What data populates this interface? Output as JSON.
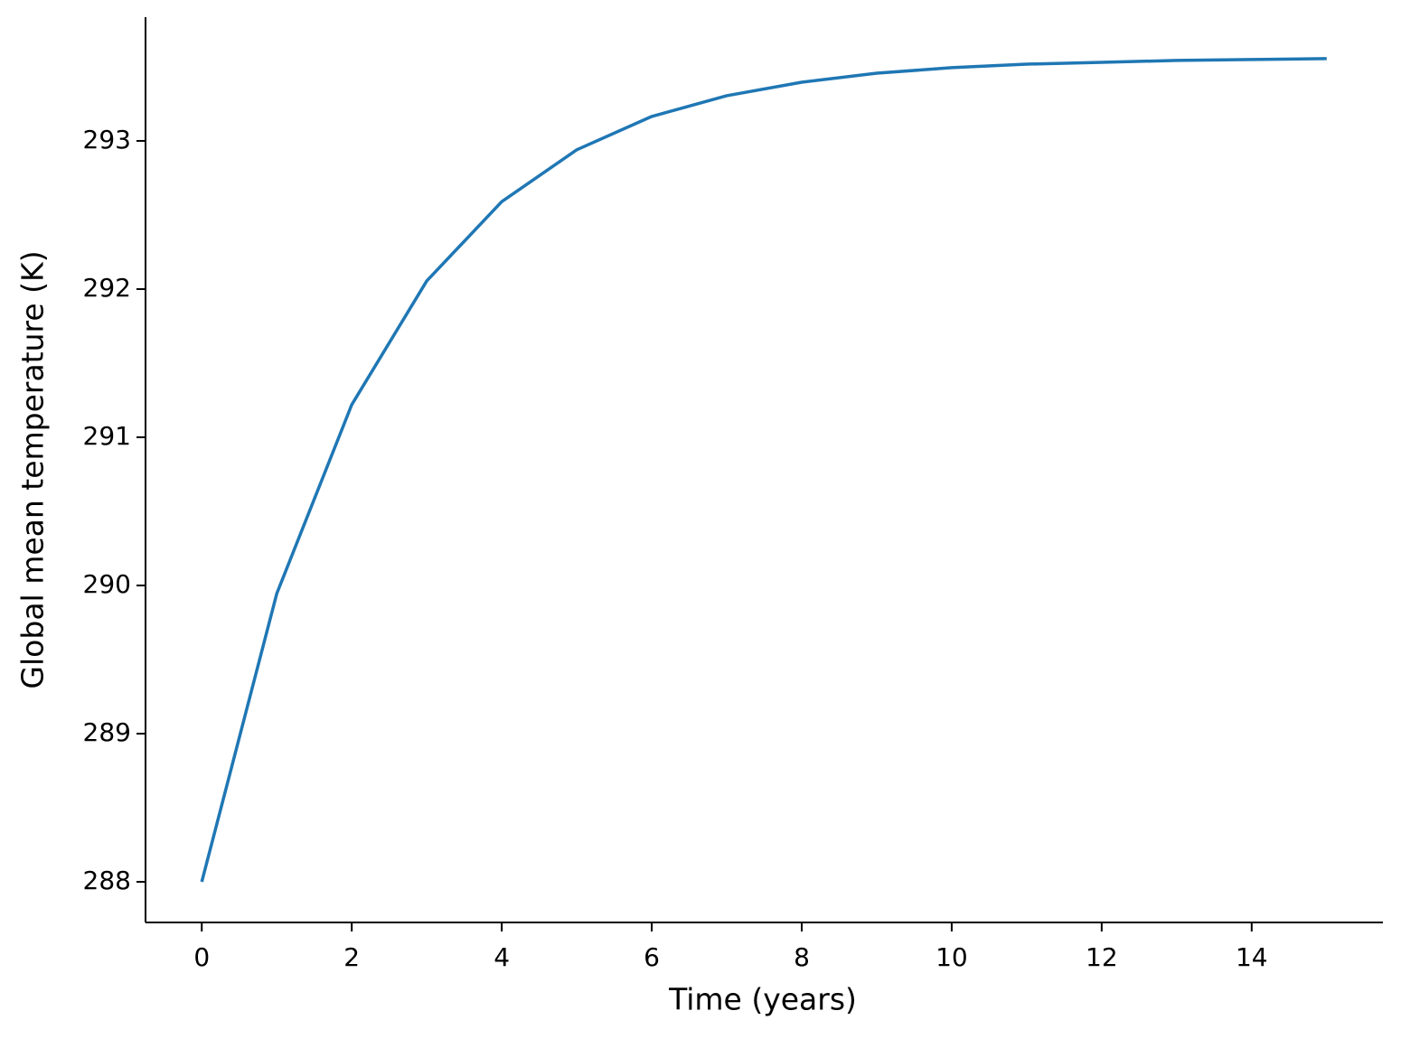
{
  "chart_data": {
    "type": "line",
    "x_label": "Time (years)",
    "y_label": "Global mean temperature (K)",
    "x": [
      0,
      1,
      2,
      3,
      4,
      5,
      6,
      7,
      8,
      9,
      10,
      11,
      12,
      13,
      14,
      15
    ],
    "values": [
      288.0,
      289.945,
      291.22,
      292.055,
      292.59,
      292.94,
      293.165,
      293.305,
      293.396,
      293.457,
      293.494,
      293.518,
      293.53,
      293.543,
      293.549,
      293.555
    ],
    "color": "#1f77b4",
    "xlim": [
      -0.75,
      15.75
    ],
    "xticks": [
      0,
      2,
      4,
      6,
      8,
      10,
      12,
      14
    ],
    "ylim": [
      287.726,
      293.835
    ],
    "yticks": [
      288,
      289,
      290,
      291,
      292,
      293
    ],
    "grid": false
  }
}
